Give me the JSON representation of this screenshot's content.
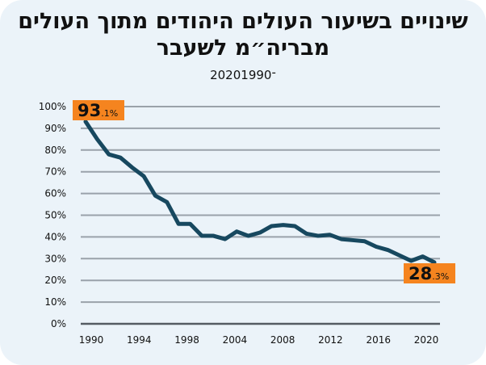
{
  "title": "שינויים בשיעור העולים היהודים מתוך העולים מבריה״מ לשעבר",
  "subtitle": "2020־1990",
  "chart_data": {
    "type": "line",
    "title": "שינויים בשיעור העולים היהודים מתוך העולים מבריה״מ לשעבר",
    "subtitle": "2020־1990",
    "x_tick_labels": [
      "1990",
      "1994",
      "1998",
      "2004",
      "2008",
      "2012",
      "2016",
      "2020"
    ],
    "y_tick_labels": [
      "0%",
      "10%",
      "20%",
      "30%",
      "40%",
      "50%",
      "60%",
      "70%",
      "80%",
      "90%",
      "100%"
    ],
    "ylim": [
      0,
      100
    ],
    "grid": true,
    "line_color": "#17485f",
    "label_color": "#f5841f",
    "x": [
      1990,
      1991,
      1992,
      1993,
      1994,
      1995,
      1996,
      1997,
      1998,
      1999,
      2000,
      2001,
      2002,
      2003,
      2004,
      2005,
      2006,
      2007,
      2008,
      2009,
      2010,
      2011,
      2012,
      2013,
      2014,
      2015,
      2016,
      2017,
      2018,
      2019,
      2020
    ],
    "values": [
      93.1,
      85,
      78,
      76.5,
      72,
      68,
      59,
      56,
      46,
      46,
      40.5,
      40.5,
      39,
      42.5,
      40.5,
      42,
      45,
      45.5,
      45,
      41.5,
      40.5,
      41,
      39,
      38.5,
      38,
      35.5,
      34,
      31.5,
      29,
      31,
      28.3
    ],
    "annotations": [
      {
        "big": "93",
        "small": ".1%"
      },
      {
        "big": "28",
        "small": ".3%"
      }
    ]
  }
}
